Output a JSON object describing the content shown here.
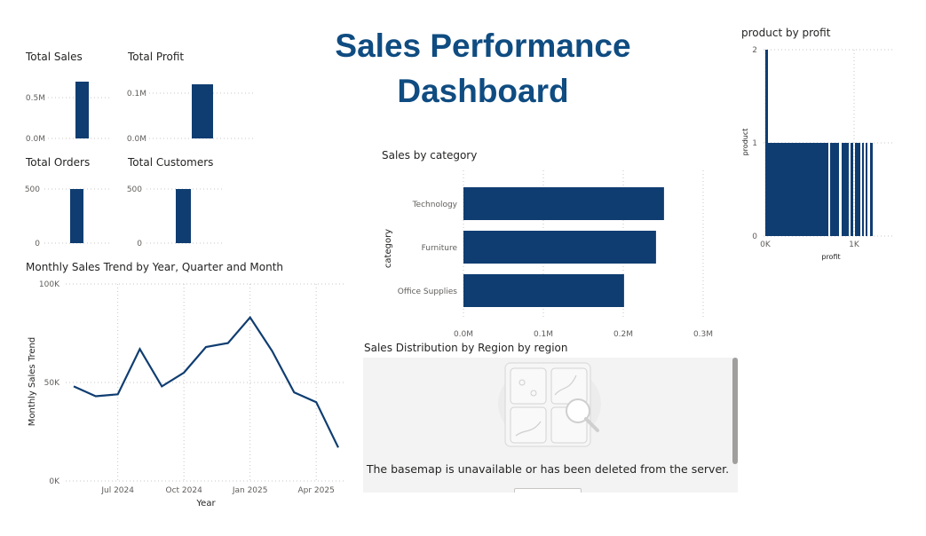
{
  "dashboard": {
    "title": "Sales Performance Dashboard"
  },
  "kpis": [
    {
      "title": "Total Sales",
      "ticks": [
        "0.5M",
        "0.0M"
      ],
      "value_fraction_of_axis": 0.88
    },
    {
      "title": "Total Profit",
      "ticks": [
        "0.1M",
        "0.0M"
      ],
      "value_fraction_of_axis": 0.82
    },
    {
      "title": "Total Orders",
      "ticks": [
        "500",
        "0"
      ],
      "value_fraction_of_axis": 1.0
    },
    {
      "title": "Total Customers",
      "ticks": [
        "500",
        "0"
      ],
      "value_fraction_of_axis": 1.0
    }
  ],
  "map": {
    "title": "Sales Distribution by Region by region",
    "message": "The basemap is unavailable or has been deleted from the server."
  },
  "colors": {
    "accent": "#0f3d71",
    "title": "#0f4c81",
    "grid": "#c8c6c4"
  },
  "chart_data": [
    {
      "type": "line",
      "title": "Monthly Sales Trend by Year, Quarter and Month",
      "xlabel": "Year",
      "ylabel": "Monthly Sales Trend",
      "x_ticks": [
        "Jul 2024",
        "Oct 2024",
        "Jan 2025",
        "Apr 2025"
      ],
      "y_ticks": [
        "100K",
        "50K",
        "0K"
      ],
      "ylim": [
        0,
        100000
      ],
      "x": [
        "2024-05",
        "2024-06",
        "2024-07",
        "2024-08",
        "2024-09",
        "2024-10",
        "2024-11",
        "2024-12",
        "2025-01",
        "2025-02",
        "2025-03",
        "2025-04",
        "2025-05"
      ],
      "values": [
        48000,
        43000,
        44000,
        67000,
        48000,
        55000,
        68000,
        70000,
        83000,
        66000,
        45000,
        40000,
        17000
      ]
    },
    {
      "type": "bar",
      "orientation": "horizontal",
      "title": "Sales by category",
      "ylabel": "category",
      "categories": [
        "Technology",
        "Furniture",
        "Office Supplies"
      ],
      "values": [
        251000,
        241000,
        201000
      ],
      "x_ticks": [
        "0.0M",
        "0.1M",
        "0.2M",
        "0.3M"
      ],
      "xlim": [
        0,
        300000
      ]
    },
    {
      "type": "bar",
      "title": "product by profit",
      "xlabel": "profit",
      "ylabel": "product",
      "x_ticks": [
        "0K",
        "1K"
      ],
      "y_ticks": [
        "2",
        "1",
        "0"
      ],
      "xlim": [
        0,
        1500
      ],
      "ylim": [
        0,
        2
      ],
      "max_value": 1
    }
  ]
}
